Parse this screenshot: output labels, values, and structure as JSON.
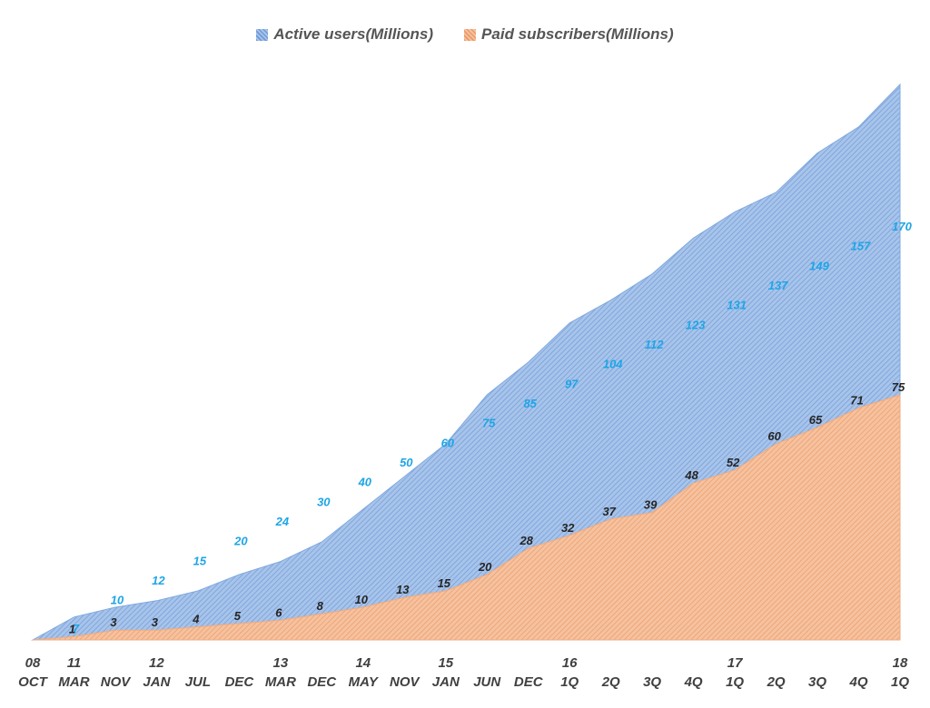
{
  "chart_data": {
    "type": "area",
    "title": "",
    "xlabel": "",
    "ylabel": "",
    "stacked": false,
    "categories": [
      "08 OCT",
      "11 MAR",
      "NOV",
      "12 JAN",
      "JUL",
      "DEC",
      "13 MAR",
      "DEC",
      "14 MAY",
      "NOV",
      "15 JAN",
      "JUN",
      "DEC",
      "16 1Q",
      "2Q",
      "3Q",
      "4Q",
      "17 1Q",
      "2Q",
      "3Q",
      "4Q",
      "18 1Q"
    ],
    "tick_labels": [
      {
        "top": "08",
        "bottom": "OCT"
      },
      {
        "top": "11",
        "bottom": "MAR"
      },
      {
        "top": "",
        "bottom": "NOV"
      },
      {
        "top": "12",
        "bottom": "JAN"
      },
      {
        "top": "",
        "bottom": "JUL"
      },
      {
        "top": "",
        "bottom": "DEC"
      },
      {
        "top": "13",
        "bottom": "MAR"
      },
      {
        "top": "",
        "bottom": "DEC"
      },
      {
        "top": "14",
        "bottom": "MAY"
      },
      {
        "top": "",
        "bottom": "NOV"
      },
      {
        "top": "15",
        "bottom": "JAN"
      },
      {
        "top": "",
        "bottom": "JUN"
      },
      {
        "top": "",
        "bottom": "DEC"
      },
      {
        "top": "16",
        "bottom": "1Q"
      },
      {
        "top": "",
        "bottom": "2Q"
      },
      {
        "top": "",
        "bottom": "3Q"
      },
      {
        "top": "",
        "bottom": "4Q"
      },
      {
        "top": "17",
        "bottom": "1Q"
      },
      {
        "top": "",
        "bottom": "2Q"
      },
      {
        "top": "",
        "bottom": "3Q"
      },
      {
        "top": "",
        "bottom": "4Q"
      },
      {
        "top": "18",
        "bottom": "1Q"
      }
    ],
    "series": [
      {
        "name": "Active users(Millions)",
        "color": "#7faadf",
        "label_color": "#1ea5e6",
        "values": [
          0,
          7,
          10,
          12,
          15,
          20,
          24,
          30,
          40,
          50,
          60,
          75,
          85,
          97,
          104,
          112,
          123,
          131,
          137,
          149,
          157,
          170
        ],
        "labels": [
          "",
          "7",
          "10",
          "12",
          "15",
          "20",
          "24",
          "30",
          "40",
          "50",
          "60",
          "75",
          "85",
          "97",
          "104",
          "112",
          "123",
          "131",
          "137",
          "149",
          "157",
          "170"
        ]
      },
      {
        "name": "Paid subscribers(Millions)",
        "color": "#f2aa7e",
        "label_color": "#262626",
        "values": [
          0,
          1,
          3,
          3,
          4,
          5,
          6,
          8,
          10,
          13,
          15,
          20,
          28,
          32,
          37,
          39,
          48,
          52,
          60,
          65,
          71,
          75
        ],
        "labels": [
          "",
          "1",
          "3",
          "3",
          "4",
          "5",
          "6",
          "8",
          "10",
          "13",
          "15",
          "20",
          "28",
          "32",
          "37",
          "39",
          "48",
          "52",
          "60",
          "65",
          "71",
          "75"
        ]
      }
    ],
    "ylim": [
      0,
      170
    ],
    "grid": false,
    "legend": "top-center"
  }
}
